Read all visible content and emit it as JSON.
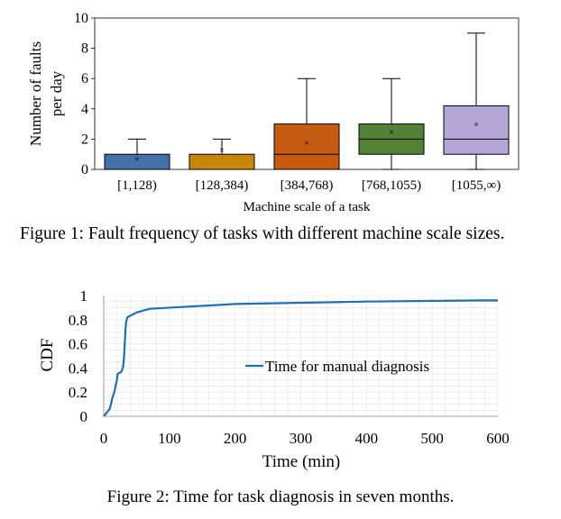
{
  "figure1": {
    "caption": "Figure 1: Fault frequency of tasks with different machine scale sizes.",
    "chart_data": {
      "type": "box",
      "xlabel": "Machine scale of a task",
      "ylabel_line1": "Number of faults",
      "ylabel_line2": "per day",
      "ylim": [
        0,
        10
      ],
      "yticks": [
        0,
        2,
        4,
        6,
        8,
        10
      ],
      "categories": [
        "[1,128)",
        "[128,384)",
        "[384,768)",
        "[768,1055)",
        "[1055,∞)"
      ],
      "colors": [
        "#4472a8",
        "#c8860a",
        "#c55a11",
        "#548235",
        "#b4a7d6"
      ],
      "boxes": [
        {
          "min": 0,
          "q1": 0,
          "median": 0,
          "q3": 1,
          "max": 2,
          "mean": 0.7
        },
        {
          "min": 0,
          "q1": 0,
          "median": 0,
          "q3": 1,
          "max": 2,
          "mean": 1.3
        },
        {
          "min": 0,
          "q1": 0,
          "median": 1,
          "q3": 3,
          "max": 6,
          "mean": 1.8
        },
        {
          "min": 0,
          "q1": 1,
          "median": 2,
          "q3": 3,
          "max": 6,
          "mean": 2.5
        },
        {
          "min": 0,
          "q1": 1,
          "median": 2,
          "q3": 4.2,
          "max": 9,
          "mean": 3
        }
      ]
    }
  },
  "figure2": {
    "caption": "Figure 2: Time for task diagnosis in seven months.",
    "chart_data": {
      "type": "line",
      "xlabel": "Time (min)",
      "ylabel": "CDF",
      "xlim": [
        0,
        600
      ],
      "ylim": [
        0,
        1
      ],
      "xticks": [
        0,
        100,
        200,
        300,
        400,
        500,
        600
      ],
      "yticks": [
        0,
        0.2,
        0.4,
        0.6,
        0.8,
        1
      ],
      "ytick_labels": [
        "0",
        "0.2",
        "0.4",
        "0.6",
        "0.8",
        "1"
      ],
      "grid": true,
      "legend_position": "right",
      "series": [
        {
          "name": "Time for manual diagnosis",
          "color": "#1f6fb5",
          "points": [
            [
              0,
              0
            ],
            [
              3,
              0.02
            ],
            [
              6,
              0.04
            ],
            [
              9,
              0.06
            ],
            [
              11,
              0.1
            ],
            [
              13,
              0.15
            ],
            [
              16,
              0.2
            ],
            [
              18,
              0.25
            ],
            [
              20,
              0.3
            ],
            [
              21,
              0.35
            ],
            [
              27,
              0.37
            ],
            [
              29,
              0.4
            ],
            [
              30,
              0.43
            ],
            [
              31,
              0.5
            ],
            [
              32,
              0.6
            ],
            [
              33,
              0.7
            ],
            [
              34,
              0.78
            ],
            [
              36,
              0.82
            ],
            [
              50,
              0.86
            ],
            [
              70,
              0.89
            ],
            [
              200,
              0.93
            ],
            [
              400,
              0.95
            ],
            [
              570,
              0.96
            ],
            [
              600,
              0.96
            ]
          ]
        }
      ]
    }
  }
}
